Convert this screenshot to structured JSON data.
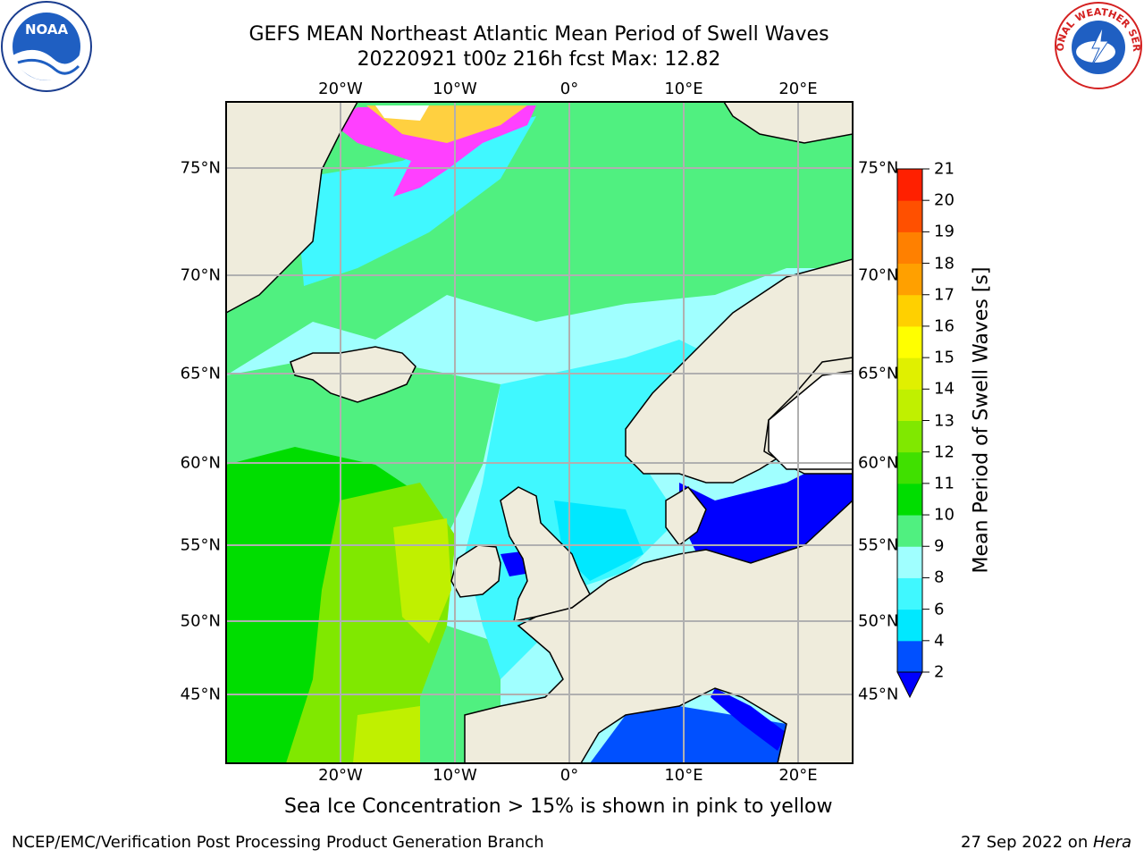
{
  "title": {
    "line1": "GEFS MEAN Northeast Atlantic Mean Period of Swell Waves",
    "line2": "20220921 t00z 216h fcst   Max: 12.82"
  },
  "logos": {
    "left": "NOAA",
    "right": "NATIONAL WEATHER SERVICE"
  },
  "map": {
    "lon_labels": [
      "20°W",
      "10°W",
      "0°",
      "10°E",
      "20°E"
    ],
    "lat_labels": [
      "75°N",
      "70°N",
      "65°N",
      "60°N",
      "55°N",
      "50°N",
      "45°N"
    ]
  },
  "colorbar": {
    "label": "Mean Period of Swell Waves [s]",
    "ticks": [
      "2",
      "4",
      "6",
      "8",
      "9",
      "10",
      "11",
      "12",
      "13",
      "14",
      "15",
      "16",
      "17",
      "18",
      "19",
      "20",
      "21"
    ],
    "colors": [
      "#0050ff",
      "#00e8ff",
      "#40f8ff",
      "#a0ffff",
      "#50f080",
      "#00dd00",
      "#40e000",
      "#80e800",
      "#c0f000",
      "#e0f000",
      "#ffff00",
      "#ffd000",
      "#ffa000",
      "#ff8000",
      "#ff5000",
      "#ff2000"
    ],
    "extend_below_color": "#0000ff"
  },
  "note": "Sea Ice Concentration > 15% is shown in pink to yellow",
  "footer": {
    "left": "NCEP/EMC/Verification Post Processing Product Generation Branch",
    "right_date": "27 Sep 2022 on ",
    "right_machine": "Hera"
  }
}
